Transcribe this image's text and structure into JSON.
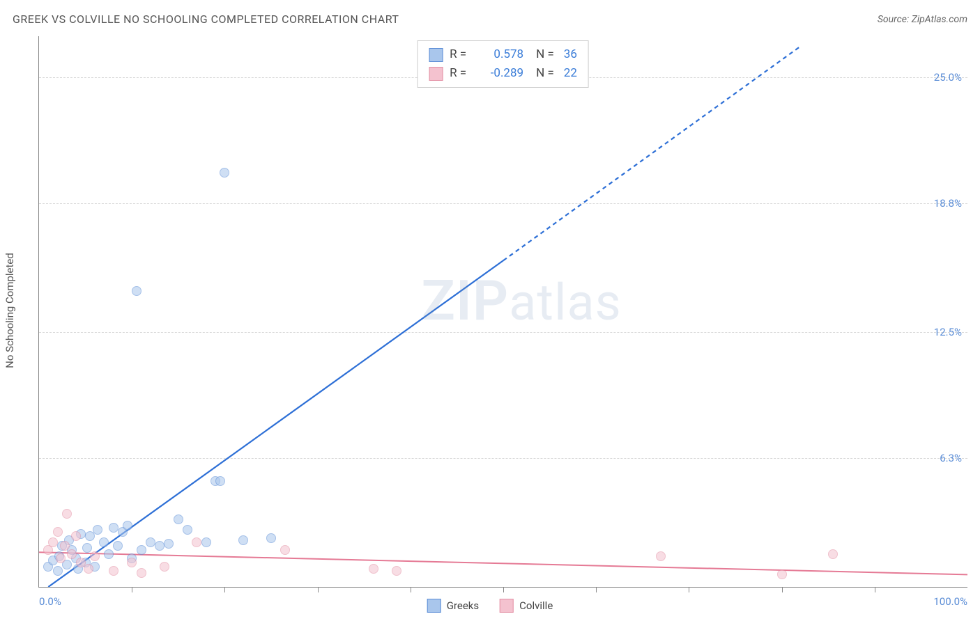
{
  "header": {
    "title": "GREEK VS COLVILLE NO SCHOOLING COMPLETED CORRELATION CHART",
    "source": "Source: ZipAtlas.com"
  },
  "ylabel": "No Schooling Completed",
  "watermark_zip": "ZIP",
  "watermark_atlas": "atlas",
  "chart": {
    "type": "scatter",
    "xlim": [
      0,
      100
    ],
    "ylim": [
      0,
      27
    ],
    "background_color": "#ffffff",
    "grid_color": "#d8d8d8",
    "axis_color": "#888888",
    "y_ticks": [
      {
        "value": 6.3,
        "label": "6.3%"
      },
      {
        "value": 12.5,
        "label": "12.5%"
      },
      {
        "value": 18.8,
        "label": "18.8%"
      },
      {
        "value": 25.0,
        "label": "25.0%"
      }
    ],
    "x_ticks_minor": [
      10,
      20,
      30,
      40,
      50,
      60,
      70,
      80,
      90
    ],
    "x_tick_labels": [
      {
        "value": 0,
        "label": "0.0%",
        "align": "left"
      },
      {
        "value": 100,
        "label": "100.0%",
        "align": "right"
      }
    ],
    "marker_radius": 7,
    "marker_opacity": 0.55,
    "marker_stroke_width": 1.2,
    "series": [
      {
        "name": "Greeks",
        "fill_color": "#a9c6ec",
        "stroke_color": "#5b8dd6",
        "swatch_fill": "#a9c6ec",
        "swatch_border": "#5b8dd6",
        "R": "0.578",
        "N": "36",
        "trend": {
          "color": "#2d6fd6",
          "width": 2.2,
          "x0": 1,
          "y0": 0,
          "x1": 50,
          "y1": 16.0,
          "dash_from_x": 50,
          "x2": 82,
          "y2": 26.5
        },
        "points": [
          [
            1.0,
            1.0
          ],
          [
            1.5,
            1.3
          ],
          [
            2.0,
            0.8
          ],
          [
            2.2,
            1.5
          ],
          [
            2.5,
            2.0
          ],
          [
            3.0,
            1.1
          ],
          [
            3.2,
            2.3
          ],
          [
            3.5,
            1.8
          ],
          [
            4.0,
            1.4
          ],
          [
            4.2,
            0.9
          ],
          [
            4.5,
            2.6
          ],
          [
            5.0,
            1.2
          ],
          [
            5.2,
            1.9
          ],
          [
            5.5,
            2.5
          ],
          [
            6.0,
            1.0
          ],
          [
            6.3,
            2.8
          ],
          [
            7.0,
            2.2
          ],
          [
            7.5,
            1.6
          ],
          [
            8.0,
            2.9
          ],
          [
            8.5,
            2.0
          ],
          [
            9.0,
            2.7
          ],
          [
            9.5,
            3.0
          ],
          [
            10.0,
            1.4
          ],
          [
            10.5,
            14.5
          ],
          [
            11.0,
            1.8
          ],
          [
            12.0,
            2.2
          ],
          [
            13.0,
            2.0
          ],
          [
            14.0,
            2.1
          ],
          [
            15.0,
            3.3
          ],
          [
            16.0,
            2.8
          ],
          [
            18.0,
            2.2
          ],
          [
            19.0,
            5.2
          ],
          [
            19.5,
            5.2
          ],
          [
            20.0,
            20.3
          ],
          [
            22.0,
            2.3
          ],
          [
            25.0,
            2.4
          ]
        ]
      },
      {
        "name": "Colville",
        "fill_color": "#f4c2cf",
        "stroke_color": "#e38fa4",
        "swatch_fill": "#f4c2cf",
        "swatch_border": "#e38fa4",
        "R": "-0.289",
        "N": "22",
        "trend": {
          "color": "#e57a95",
          "width": 2.0,
          "x0": 0,
          "y0": 1.7,
          "x1": 100,
          "y1": 0.6
        },
        "points": [
          [
            1.0,
            1.8
          ],
          [
            1.5,
            2.2
          ],
          [
            2.0,
            2.7
          ],
          [
            2.3,
            1.4
          ],
          [
            2.8,
            2.0
          ],
          [
            3.0,
            3.6
          ],
          [
            3.5,
            1.6
          ],
          [
            4.0,
            2.5
          ],
          [
            4.5,
            1.2
          ],
          [
            5.3,
            0.9
          ],
          [
            6.0,
            1.5
          ],
          [
            8.0,
            0.8
          ],
          [
            10.0,
            1.2
          ],
          [
            11.0,
            0.7
          ],
          [
            13.5,
            1.0
          ],
          [
            17.0,
            2.2
          ],
          [
            26.5,
            1.8
          ],
          [
            36.0,
            0.9
          ],
          [
            38.5,
            0.8
          ],
          [
            67.0,
            1.5
          ],
          [
            80.0,
            0.6
          ],
          [
            85.5,
            1.6
          ]
        ]
      }
    ]
  },
  "legend_bottom": [
    {
      "label": "Greeks",
      "fill": "#a9c6ec",
      "border": "#5b8dd6"
    },
    {
      "label": "Colville",
      "fill": "#f4c2cf",
      "border": "#e38fa4"
    }
  ]
}
